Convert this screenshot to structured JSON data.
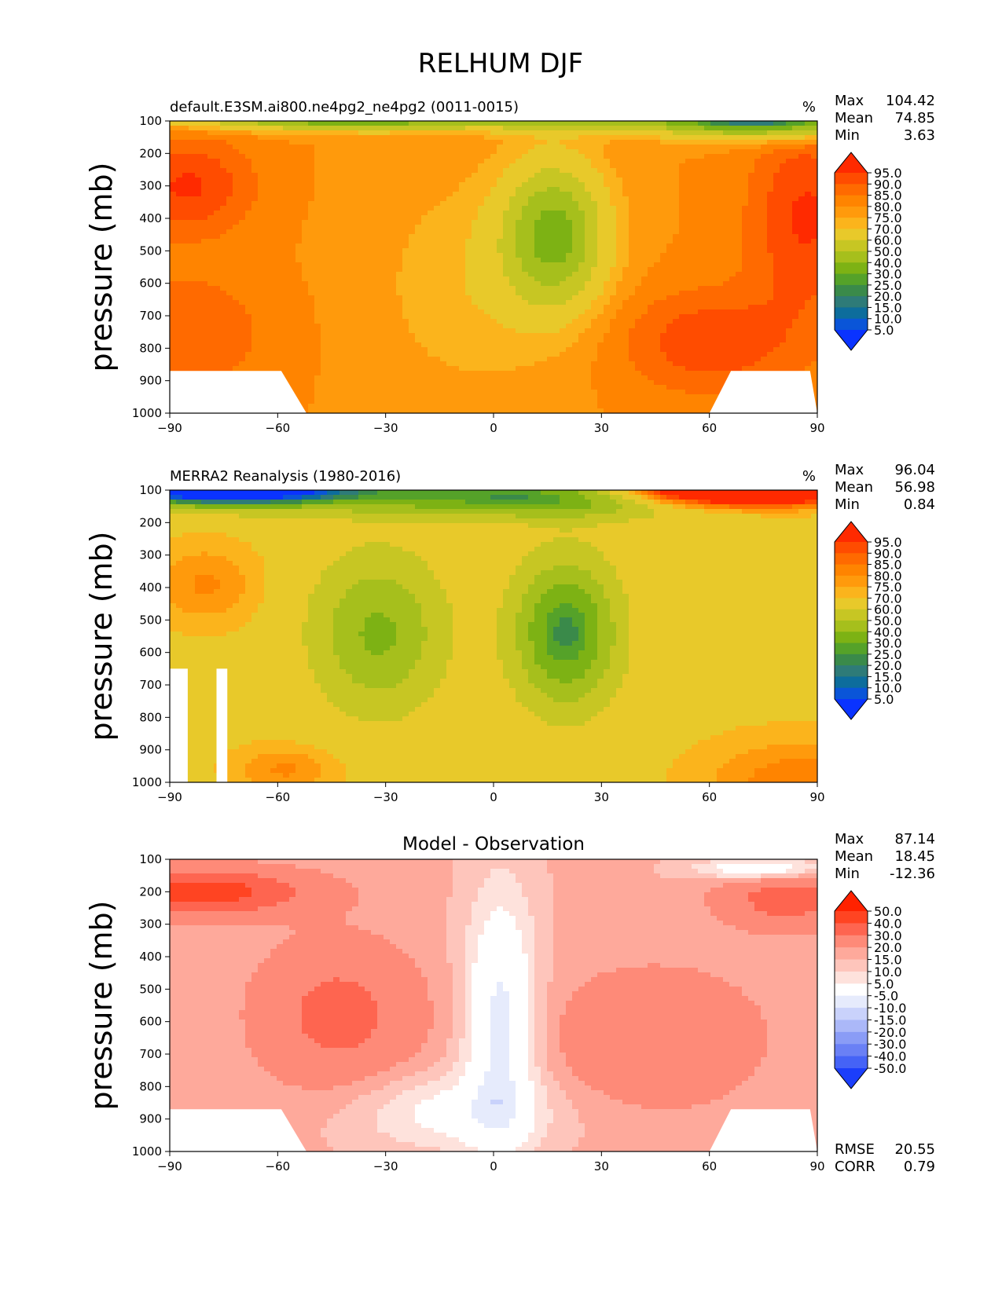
{
  "figure": {
    "title": "RELHUM DJF"
  },
  "axis": {
    "ylabel": "pressure (mb)",
    "y_ticks": [
      "100",
      "200",
      "300",
      "400",
      "500",
      "600",
      "700",
      "800",
      "900",
      "1000"
    ],
    "x_ticks": [
      "−90",
      "−60",
      "−30",
      "0",
      "30",
      "60",
      "90"
    ]
  },
  "chart_data": [
    {
      "type": "heatmap",
      "title": "default.E3SM.ai800.ne4pg2_ne4pg2 (0011-0015)",
      "units": "%",
      "x": [
        -90,
        -60,
        -30,
        0,
        30,
        60,
        90
      ],
      "y": [
        100,
        200,
        300,
        400,
        500,
        600,
        700,
        800,
        900,
        1000
      ],
      "xlim": [
        -90,
        90
      ],
      "ylim": [
        1000,
        100
      ],
      "stats": [
        {
          "label": "Max",
          "value": "104.42"
        },
        {
          "label": "Mean",
          "value": "74.85"
        },
        {
          "label": "Min",
          "value": "3.63"
        }
      ],
      "colorbar": {
        "labels": [
          "95.0",
          "90.0",
          "85.0",
          "80.0",
          "75.0",
          "70.0",
          "60.0",
          "50.0",
          "40.0",
          "30.0",
          "25.0",
          "20.0",
          "15.0",
          "10.0",
          "5.0"
        ],
        "colors": [
          "#ff2a00",
          "#ff4c00",
          "#ff6a00",
          "#ff8400",
          "#ff9a0c",
          "#fbb41c",
          "#e8c92a",
          "#c7c623",
          "#a6bf1c",
          "#7db214",
          "#55a229",
          "#3a8a4a",
          "#2e7b78",
          "#0d6d9c",
          "#0a55d8",
          "#0a33ff"
        ]
      }
    },
    {
      "type": "heatmap",
      "title": "MERRA2 Reanalysis (1980-2016)",
      "units": "%",
      "x": [
        -90,
        -60,
        -30,
        0,
        30,
        60,
        90
      ],
      "y": [
        100,
        200,
        300,
        400,
        500,
        600,
        700,
        800,
        900,
        1000
      ],
      "xlim": [
        -90,
        90
      ],
      "ylim": [
        1000,
        100
      ],
      "stats": [
        {
          "label": "Max",
          "value": "96.04"
        },
        {
          "label": "Mean",
          "value": "56.98"
        },
        {
          "label": "Min",
          "value": "0.84"
        }
      ],
      "colorbar": {
        "labels": [
          "95.0",
          "90.0",
          "85.0",
          "80.0",
          "75.0",
          "70.0",
          "60.0",
          "50.0",
          "40.0",
          "30.0",
          "25.0",
          "20.0",
          "15.0",
          "10.0",
          "5.0"
        ],
        "colors": [
          "#ff2a00",
          "#ff4c00",
          "#ff6a00",
          "#ff8400",
          "#ff9a0c",
          "#fbb41c",
          "#e8c92a",
          "#c7c623",
          "#a6bf1c",
          "#7db214",
          "#55a229",
          "#3a8a4a",
          "#2e7b78",
          "#0d6d9c",
          "#0a55d8",
          "#0a33ff"
        ]
      }
    },
    {
      "type": "heatmap",
      "title": "Model - Observation",
      "units": "",
      "x": [
        -90,
        -60,
        -30,
        0,
        30,
        60,
        90
      ],
      "y": [
        100,
        200,
        300,
        400,
        500,
        600,
        700,
        800,
        900,
        1000
      ],
      "xlim": [
        -90,
        90
      ],
      "ylim": [
        1000,
        100
      ],
      "stats": [
        {
          "label": "Max",
          "value": "87.14"
        },
        {
          "label": "Mean",
          "value": "18.45"
        },
        {
          "label": "Min",
          "value": "-12.36"
        }
      ],
      "extra_stats": [
        {
          "label": "RMSE",
          "value": "20.55"
        },
        {
          "label": "CORR",
          "value": "0.79"
        }
      ],
      "colorbar": {
        "labels": [
          "50.0",
          "40.0",
          "30.0",
          "20.0",
          "15.0",
          "10.0",
          "5.0",
          "-5.0",
          "-10.0",
          "-15.0",
          "-20.0",
          "-30.0",
          "-40.0",
          "-50.0"
        ],
        "colors": [
          "#ff2200",
          "#ff4422",
          "#fe6550",
          "#fe8a78",
          "#fea99b",
          "#fec5bb",
          "#fee2dc",
          "#ffffff",
          "#e6ebfc",
          "#c9d2fb",
          "#abb8f8",
          "#8a9cf6",
          "#6a80f5",
          "#4563f6",
          "#1b3efb"
        ]
      }
    }
  ]
}
